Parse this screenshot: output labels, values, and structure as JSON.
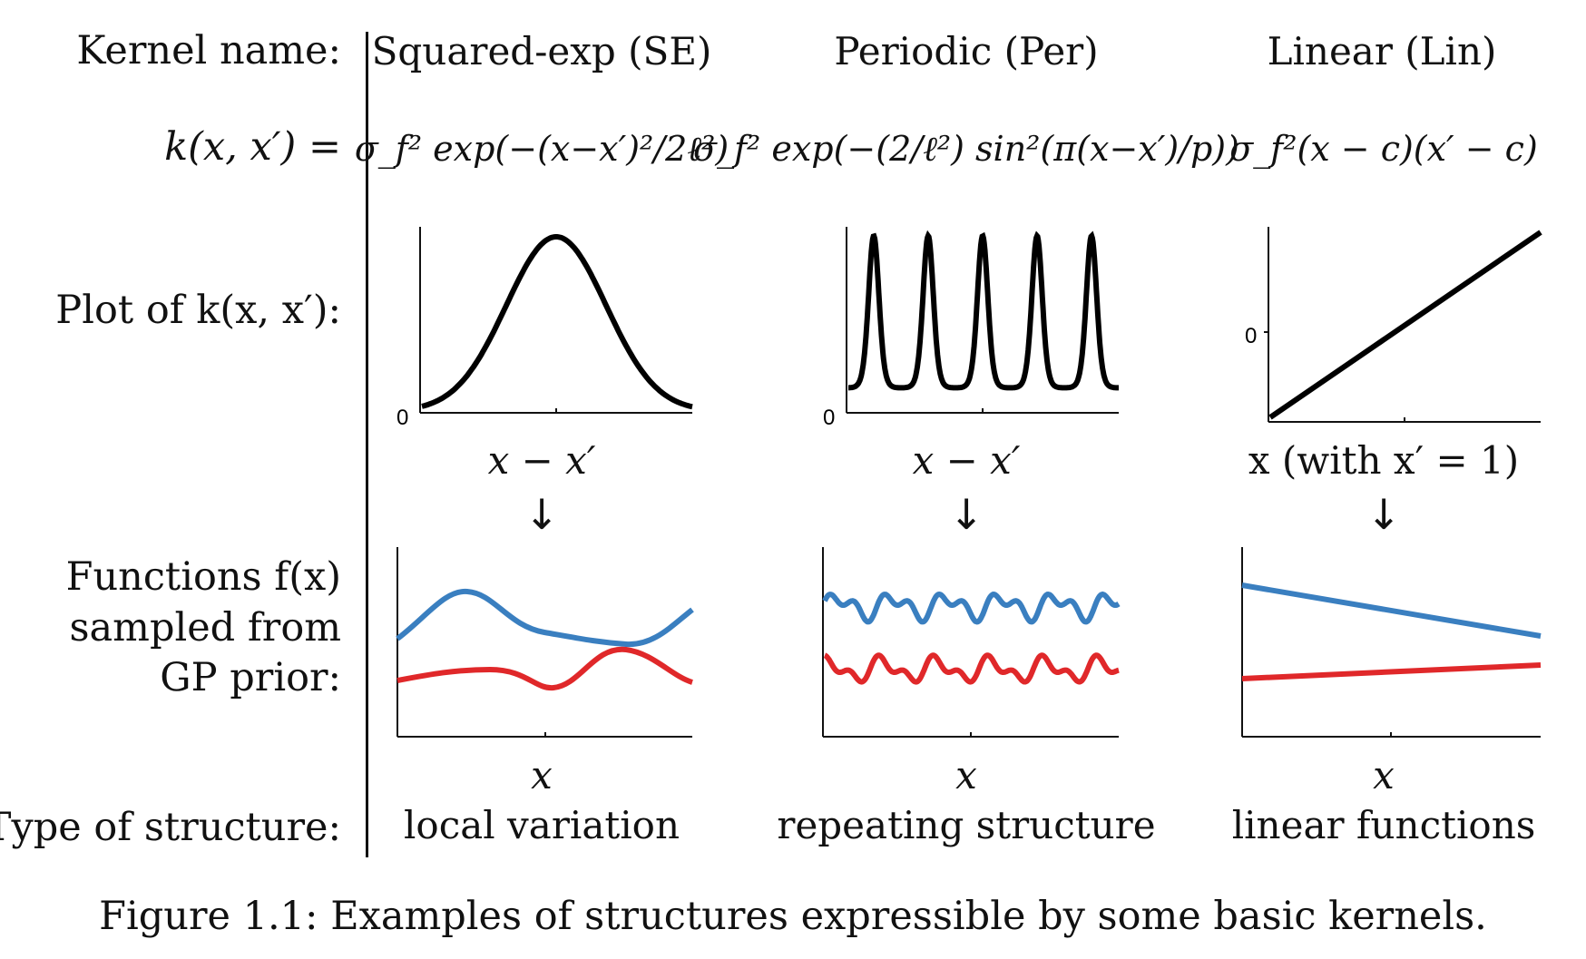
{
  "row_labels": {
    "kernel_name": "Kernel name:",
    "k_def": "k(x, x′) =",
    "plot_of": "Plot of k(x, x′):",
    "functions_1": "Functions f(x)",
    "functions_2": "sampled from",
    "functions_3": "GP prior:",
    "type_of_structure": "Type of structure:"
  },
  "kernels": [
    {
      "name": "Squared-exp (SE)",
      "formula": "σ_f² exp(−(x−x′)²/2ℓ²)",
      "kernel_plot_axis": "x − x′",
      "zero_tick": "0",
      "sample_axis": "x",
      "structure": "local variation"
    },
    {
      "name": "Periodic (Per)",
      "formula": "σ_f² exp(−(2/ℓ²) sin²(π(x−x′)/p))",
      "kernel_plot_axis": "x − x′",
      "zero_tick": "0",
      "sample_axis": "x",
      "structure": "repeating structure"
    },
    {
      "name": "Linear (Lin)",
      "formula": "σ_f²(x − c)(x′ − c)",
      "kernel_plot_axis": "x (with x′ = 1)",
      "zero_tick": "0",
      "sample_axis": "x",
      "structure": "linear functions"
    }
  ],
  "arrow_glyph": "↓",
  "caption": "Figure 1.1: Examples of structures expressible by some basic kernels.",
  "colors": {
    "sample_blue": "#3a7fc0",
    "sample_red": "#e0282a",
    "curve": "#000000"
  }
}
